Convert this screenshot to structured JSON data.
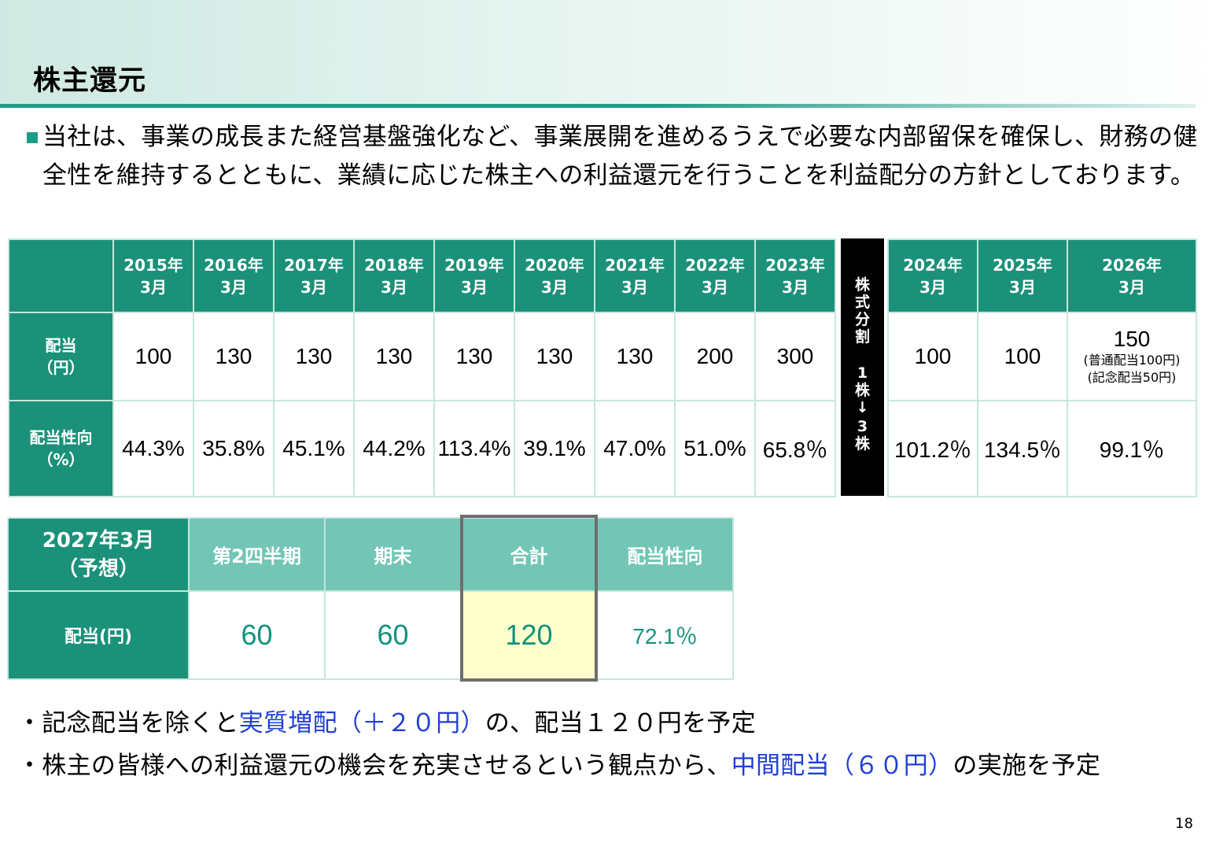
{
  "title": "株主還元",
  "intro": "当社は、事業の成長また経営基盤強化など、事業展開を進めるうえで必要な内部留保を確保し、財務の健全性を維持するとともに、業績に応じた株主への利益還元を行うことを利益配分の方針としております。",
  "history": {
    "row_labels": {
      "dividend": "配当\n（円）",
      "payout": "配当性向\n（%）"
    },
    "columns": [
      {
        "year": "2015年",
        "month": "3月",
        "dividend": "100",
        "payout": "44.3%"
      },
      {
        "year": "2016年",
        "month": "3月",
        "dividend": "130",
        "payout": "35.8%"
      },
      {
        "year": "2017年",
        "month": "3月",
        "dividend": "130",
        "payout": "45.1%"
      },
      {
        "year": "2018年",
        "month": "3月",
        "dividend": "130",
        "payout": "44.2%"
      },
      {
        "year": "2019年",
        "month": "3月",
        "dividend": "130",
        "payout": "113.4%"
      },
      {
        "year": "2020年",
        "month": "3月",
        "dividend": "130",
        "payout": "39.1%"
      },
      {
        "year": "2021年",
        "month": "3月",
        "dividend": "130",
        "payout": "47.0%"
      },
      {
        "year": "2022年",
        "month": "3月",
        "dividend": "200",
        "payout": "51.0%"
      },
      {
        "year": "2023年",
        "month": "3月",
        "dividend": "300",
        "payout": "65.8％"
      }
    ]
  },
  "split": {
    "lines": [
      "株",
      "式",
      "分",
      "割",
      "1",
      "株",
      "↓",
      "3",
      "株"
    ]
  },
  "recent": {
    "columns": [
      {
        "year": "2024年",
        "month": "3月",
        "dividend": "100",
        "payout": "101.2％"
      },
      {
        "year": "2025年",
        "month": "3月",
        "dividend": "100",
        "payout": "134.5％"
      },
      {
        "year": "2026年",
        "month": "3月",
        "dividend": "150",
        "note1": "(普通配当100円)",
        "note2": "(記念配当50円)",
        "payout": "99.1％"
      }
    ]
  },
  "forecast": {
    "corner_line1": "2027年3月",
    "corner_line2": "（予想）",
    "headers": [
      "第2四半期",
      "期末",
      "合計",
      "配当性向"
    ],
    "row_label": "配当(円)",
    "values": [
      "60",
      "60",
      "120",
      "72.1％"
    ]
  },
  "notes": {
    "note1_a": "・記念配当を除くと",
    "note1_b": "実質増配（＋２０円）",
    "note1_c": "の、配当１２０円を予定",
    "note2_a": "・株主の皆様への利益還元の機会を充実させるという観点から、",
    "note2_b": "中間配当（６０円）",
    "note2_c": "の実施を予定"
  },
  "page_number": "18",
  "colors": {
    "accent_dark": "#1b9179",
    "accent_light": "#73c6b6",
    "highlight": "#ffffcc",
    "emphasis_blue": "#1f3fd6"
  }
}
